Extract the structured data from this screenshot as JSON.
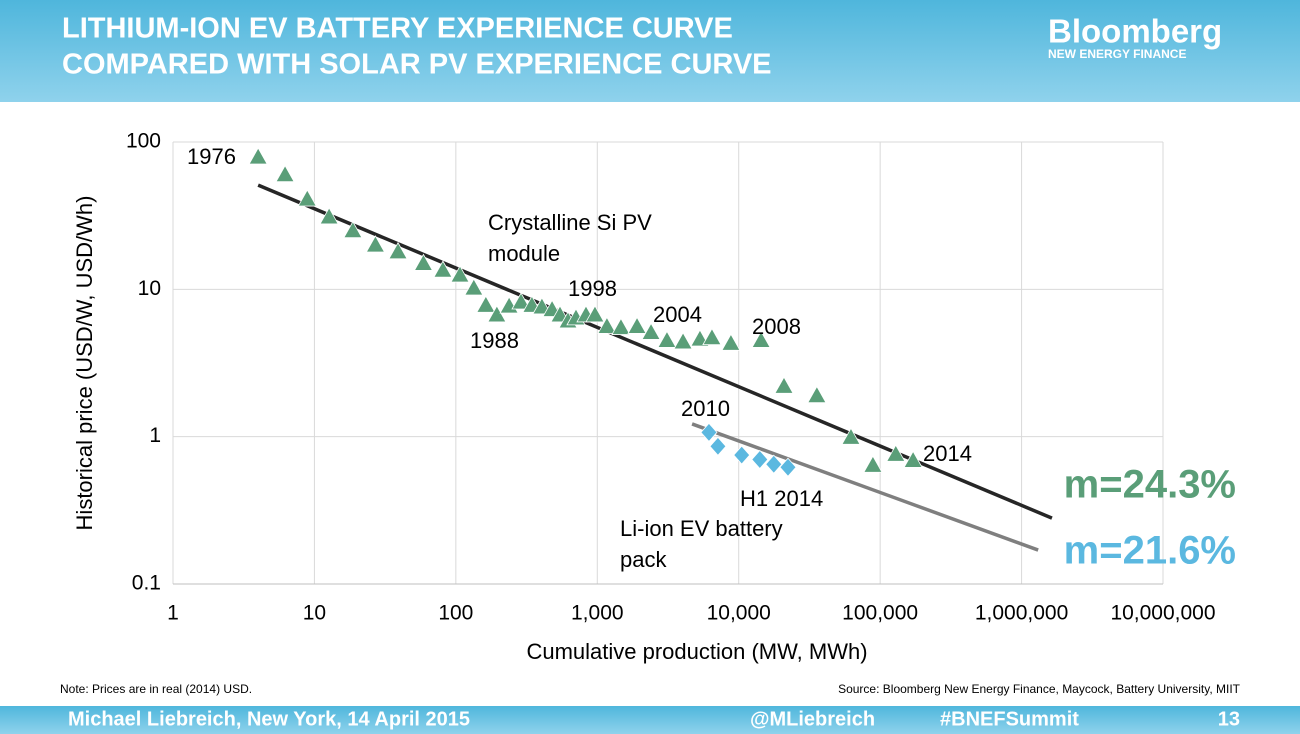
{
  "header": {
    "title_lines": [
      "LITHIUM-ION EV BATTERY EXPERIENCE CURVE",
      "COMPARED WITH SOLAR PV EXPERIENCE CURVE"
    ],
    "logo": "Bloomberg",
    "logo_sub": "NEW ENERGY FINANCE"
  },
  "chart_data": {
    "type": "scatter",
    "x_label": "Cumulative production (MW, MWh)",
    "y_label": "Historical price (USD/W, USD/Wh)",
    "log_x": true,
    "log_y": true,
    "grid": true,
    "xlim": [
      1,
      10000000
    ],
    "ylim": [
      0.1,
      100
    ],
    "xticks": [
      1,
      10,
      100,
      {
        "value": 1000,
        "label": "1,000"
      },
      {
        "value": 10000,
        "label": "10,000"
      },
      {
        "value": 100000,
        "label": "100,000"
      },
      {
        "value": 1000000,
        "label": "1,000,000"
      },
      {
        "value": 10000000,
        "label": "10,000,000"
      }
    ],
    "yticks": [
      0.1,
      1,
      10,
      100
    ],
    "series": [
      {
        "name_lines": [
          "Crystalline Si PV",
          "module"
        ],
        "color": "#5a9e78",
        "marker": "triangle",
        "x": [
          4.0,
          6.2,
          8.9,
          12.7,
          18.7,
          27,
          39,
          59,
          81,
          107,
          134,
          163,
          195,
          238,
          289,
          345,
          406,
          479,
          545,
          621,
          707,
          832,
          963,
          1170,
          1470,
          1910,
          2400,
          3110,
          4040,
          5320,
          6470,
          8810,
          14400,
          20900,
          35700,
          62200,
          88900,
          129000,
          171000
        ],
        "values": [
          79,
          60,
          41,
          31,
          25,
          20,
          18,
          15,
          13.5,
          12.5,
          10.2,
          7.8,
          6.7,
          7.7,
          8.2,
          7.8,
          7.6,
          7.3,
          6.7,
          6.1,
          6.4,
          6.7,
          6.7,
          5.6,
          5.5,
          5.6,
          5.1,
          4.5,
          4.4,
          4.6,
          4.7,
          4.3,
          4.5,
          2.2,
          1.9,
          0.99,
          0.64,
          0.76,
          0.69
        ]
      },
      {
        "name_lines": [
          "Li-ion EV battery",
          "pack"
        ],
        "color": "#5bb8e0",
        "marker": "diamond",
        "x": [
          6160,
          7130,
          10500,
          14100,
          17700,
          22300
        ],
        "values": [
          1.07,
          0.86,
          0.75,
          0.7,
          0.65,
          0.62
        ]
      }
    ],
    "trend_lines": [
      {
        "color": "#262626",
        "x": [
          4.0,
          1640000
        ],
        "values": [
          51,
          0.28
        ]
      },
      {
        "color": "#7f7f7f",
        "x": [
          4680,
          1310000
        ],
        "values": [
          1.22,
          0.17
        ]
      }
    ],
    "annotations": [
      "1976",
      "1988",
      "1998",
      "2004",
      "2008",
      "2010",
      "2014",
      "H1 2014"
    ],
    "slopes": [
      {
        "text": "m=24.3%",
        "color": "#5a9e78"
      },
      {
        "text": "m=21.6%",
        "color": "#5bb8e0"
      }
    ]
  },
  "footer": {
    "note": "Note: Prices are in real (2014) USD.",
    "source": "Source: Bloomberg New Energy Finance, Maycock, Battery University, MIIT",
    "author": "Michael Liebreich, New York, 14 April 2015",
    "handle": "@MLiebreich",
    "hashtag": "#BNEFSummit",
    "page": "13"
  }
}
